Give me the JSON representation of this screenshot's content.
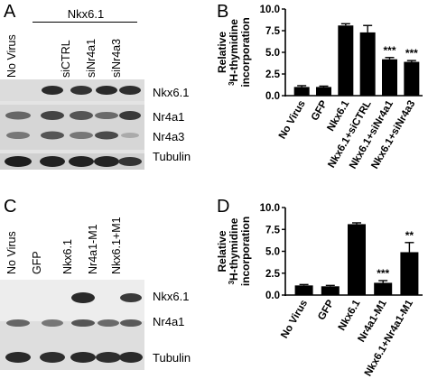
{
  "panelA": {
    "label": "A",
    "group_label": "Nkx6.1",
    "lanes": [
      "No Virus",
      "siCTRL",
      "siNr4a1",
      "siNr4a3"
    ],
    "blots": [
      "Nkx6.1",
      "Nr4a1",
      "Nr4a3",
      "Tubulin"
    ]
  },
  "panelC": {
    "label": "C",
    "lanes": [
      "No Virus",
      "GFP",
      "Nkx6.1",
      "Nr4a1-M1",
      "Nkx6.1+M1"
    ],
    "blots": [
      "Nkx6.1",
      "Nr4a1",
      "Tubulin"
    ]
  },
  "chart_data": [
    {
      "panel": "B",
      "type": "bar",
      "ylabel_line1": "Relative",
      "ylabel_sup": "3",
      "ylabel_line2": "H-thymidine",
      "ylabel_line3": "incorporation",
      "ylim": [
        0,
        10
      ],
      "yticks": [
        "0.0",
        "2.5",
        "5.0",
        "7.5",
        "10.0"
      ],
      "categories": [
        "No Virus",
        "GFP",
        "Nkx6.1",
        "Nkx6.1+siCTRL",
        "Nkx6.1+siNr4a1",
        "Nkx6.1+siNr4a3"
      ],
      "values": [
        1.0,
        1.0,
        8.1,
        7.3,
        4.2,
        3.9
      ],
      "errors": [
        0.15,
        0.1,
        0.2,
        0.8,
        0.2,
        0.15
      ],
      "annotations": [
        "",
        "",
        "",
        "",
        "***",
        "***"
      ],
      "bar_color": "#000000"
    },
    {
      "panel": "D",
      "type": "bar",
      "ylabel_line1": "Relative",
      "ylabel_sup": "3",
      "ylabel_line2": "H-thymidine",
      "ylabel_line3": "incorporation",
      "ylim": [
        0,
        10
      ],
      "yticks": [
        "0.0",
        "2.5",
        "5.0",
        "7.5",
        "10.0"
      ],
      "categories": [
        "No Virus",
        "GFP",
        "Nkx6.1",
        "Nr4a1-M1",
        "Nkx6.1+Nr4a1-M1"
      ],
      "values": [
        1.1,
        1.0,
        8.1,
        1.4,
        4.9
      ],
      "errors": [
        0.1,
        0.1,
        0.15,
        0.25,
        1.1
      ],
      "annotations": [
        "",
        "",
        "",
        "***",
        "**"
      ],
      "bar_color": "#000000"
    }
  ]
}
